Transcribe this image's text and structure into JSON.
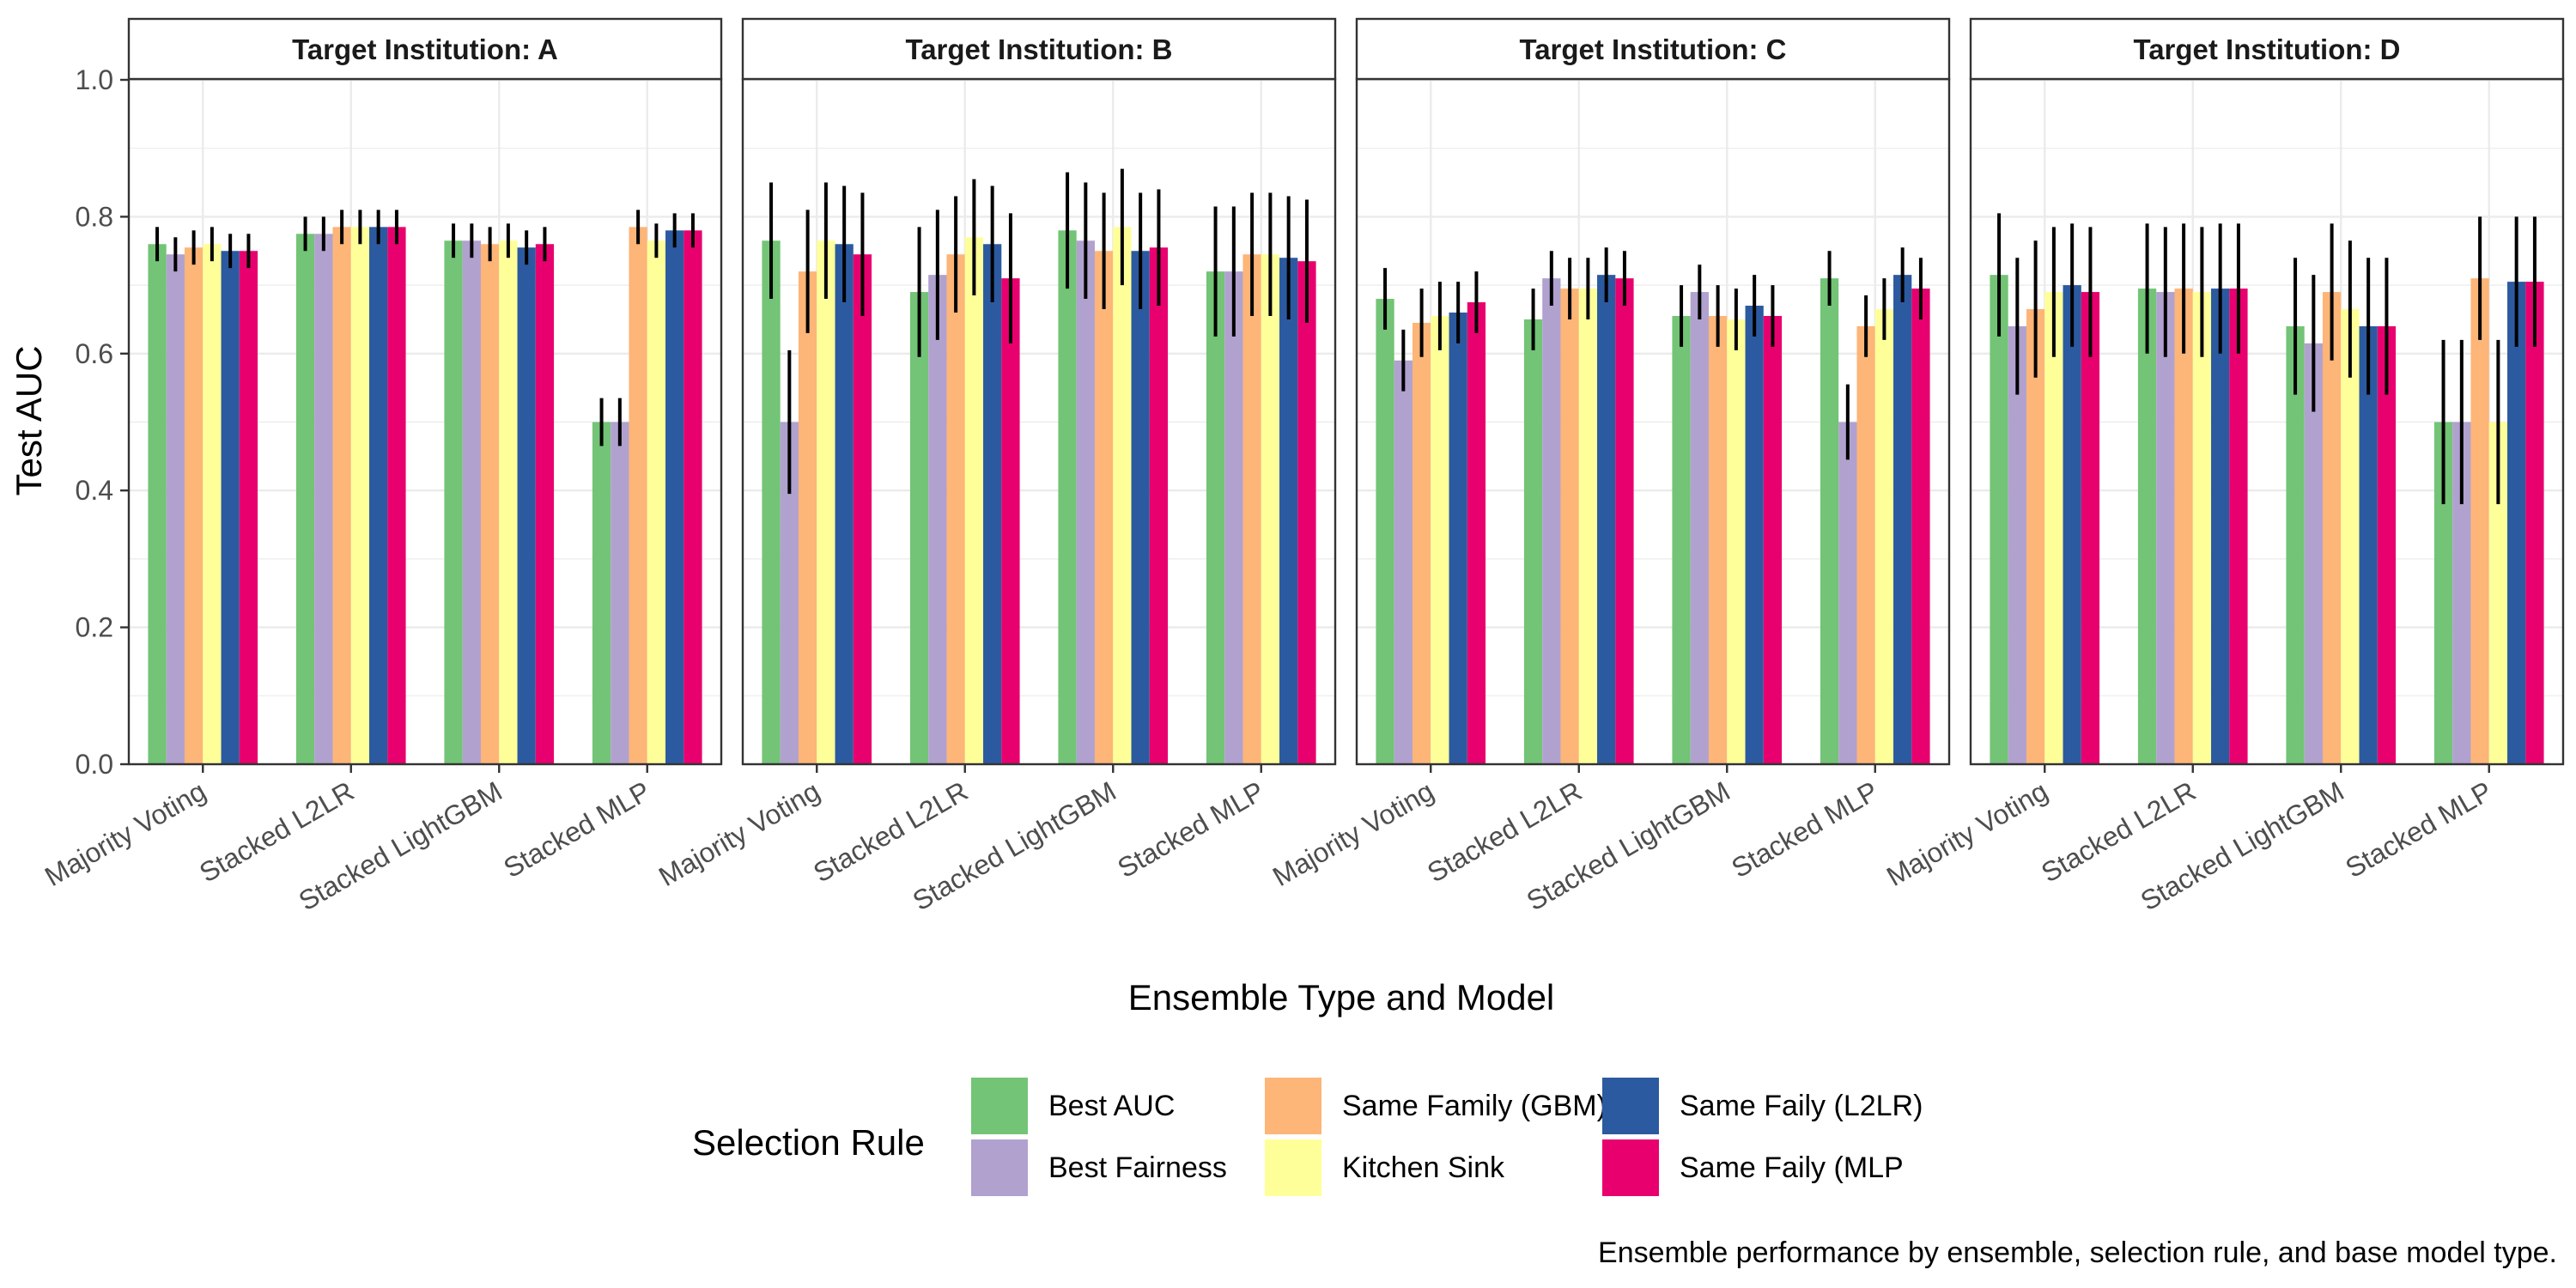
{
  "chart_data": {
    "type": "bar",
    "ylabel": "Test AUC",
    "xlabel": "Ensemble Type and Model",
    "ylim": [
      0,
      1
    ],
    "yticks": [
      "0.0",
      "0.2",
      "0.4",
      "0.6",
      "0.8",
      "1.0"
    ],
    "grid": true,
    "legend_placement": "bottom",
    "categories": [
      "Majority Voting",
      "Stacked L2LR",
      "Stacked LightGBM",
      "Stacked MLP"
    ],
    "series_names": [
      "Best AUC",
      "Best Fairness",
      "Same Family (GBM)",
      "Kitchen Sink",
      "Same Faily (L2LR)",
      "Same Faily (MLP"
    ],
    "colors": [
      "#73c476",
      "#b1a1cf",
      "#fdb578",
      "#ffff99",
      "#2c5aa0",
      "#e8006f"
    ],
    "legend_title": "Selection Rule",
    "caption": "Ensemble performance by ensemble, selection rule, and base model type.",
    "panels": [
      {
        "title": "Target Institution: A",
        "values": [
          [
            0.76,
            0.745,
            0.755,
            0.76,
            0.75,
            0.75
          ],
          [
            0.775,
            0.775,
            0.785,
            0.785,
            0.785,
            0.785
          ],
          [
            0.765,
            0.765,
            0.76,
            0.765,
            0.755,
            0.76
          ],
          [
            0.5,
            0.5,
            0.785,
            0.765,
            0.78,
            0.78
          ]
        ],
        "errors": [
          [
            0.025,
            0.025,
            0.025,
            0.025,
            0.025,
            0.025
          ],
          [
            0.025,
            0.025,
            0.025,
            0.025,
            0.025,
            0.025
          ],
          [
            0.025,
            0.025,
            0.025,
            0.025,
            0.025,
            0.025
          ],
          [
            0.035,
            0.035,
            0.025,
            0.025,
            0.025,
            0.025
          ]
        ]
      },
      {
        "title": "Target Institution: B",
        "values": [
          [
            0.765,
            0.5,
            0.72,
            0.765,
            0.76,
            0.745
          ],
          [
            0.69,
            0.715,
            0.745,
            0.77,
            0.76,
            0.71
          ],
          [
            0.78,
            0.765,
            0.75,
            0.785,
            0.75,
            0.755
          ],
          [
            0.72,
            0.72,
            0.745,
            0.745,
            0.74,
            0.735
          ]
        ],
        "errors": [
          [
            0.085,
            0.105,
            0.09,
            0.085,
            0.085,
            0.09
          ],
          [
            0.095,
            0.095,
            0.085,
            0.085,
            0.085,
            0.095
          ],
          [
            0.085,
            0.085,
            0.085,
            0.085,
            0.085,
            0.085
          ],
          [
            0.095,
            0.095,
            0.09,
            0.09,
            0.09,
            0.09
          ]
        ]
      },
      {
        "title": "Target Institution: C",
        "values": [
          [
            0.68,
            0.59,
            0.645,
            0.655,
            0.66,
            0.675
          ],
          [
            0.65,
            0.71,
            0.695,
            0.695,
            0.715,
            0.71
          ],
          [
            0.655,
            0.69,
            0.655,
            0.65,
            0.67,
            0.655
          ],
          [
            0.71,
            0.5,
            0.64,
            0.665,
            0.715,
            0.695
          ]
        ],
        "errors": [
          [
            0.045,
            0.045,
            0.05,
            0.05,
            0.045,
            0.045
          ],
          [
            0.045,
            0.04,
            0.045,
            0.045,
            0.04,
            0.04
          ],
          [
            0.045,
            0.04,
            0.045,
            0.045,
            0.045,
            0.045
          ],
          [
            0.04,
            0.055,
            0.045,
            0.045,
            0.04,
            0.045
          ]
        ]
      },
      {
        "title": "Target Institution: D",
        "values": [
          [
            0.715,
            0.64,
            0.665,
            0.69,
            0.7,
            0.69
          ],
          [
            0.695,
            0.69,
            0.695,
            0.69,
            0.695,
            0.695
          ],
          [
            0.64,
            0.615,
            0.69,
            0.665,
            0.64,
            0.64
          ],
          [
            0.5,
            0.5,
            0.71,
            0.5,
            0.705,
            0.705
          ]
        ],
        "errors": [
          [
            0.09,
            0.1,
            0.1,
            0.095,
            0.09,
            0.095
          ],
          [
            0.095,
            0.095,
            0.095,
            0.095,
            0.095,
            0.095
          ],
          [
            0.1,
            0.1,
            0.1,
            0.1,
            0.1,
            0.1
          ],
          [
            0.12,
            0.12,
            0.09,
            0.12,
            0.095,
            0.095
          ]
        ]
      }
    ]
  }
}
